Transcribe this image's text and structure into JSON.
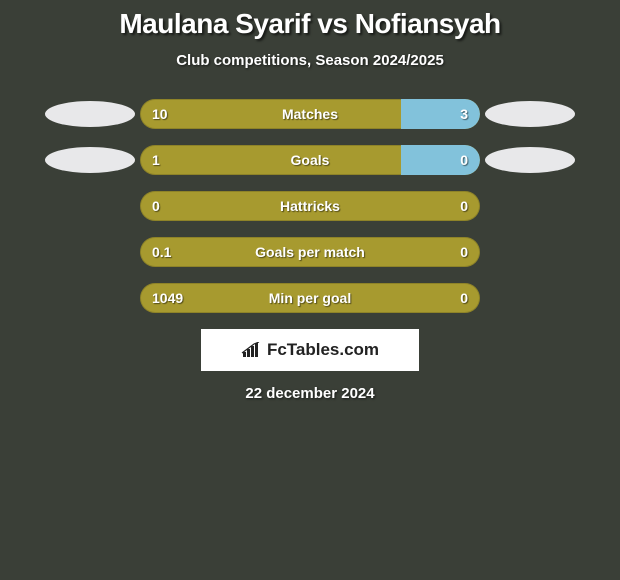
{
  "title": "Maulana Syarif vs Nofiansyah",
  "subtitle": "Club competitions, Season 2024/2025",
  "date": "22 december 2024",
  "logo_text": "FcTables.com",
  "colors": {
    "background": "#3a3f37",
    "bar_left": "#a79a2f",
    "bar_right": "#82c2db",
    "ellipse": "#e8e8ea",
    "text": "#ffffff"
  },
  "rows": [
    {
      "label": "Matches",
      "left_val": "10",
      "right_val": "3",
      "left_pct": 76.9,
      "right_pct": 23.1,
      "show_icons": true
    },
    {
      "label": "Goals",
      "left_val": "1",
      "right_val": "0",
      "left_pct": 76.9,
      "right_pct": 23.1,
      "show_icons": true
    },
    {
      "label": "Hattricks",
      "left_val": "0",
      "right_val": "0",
      "left_pct": 100,
      "right_pct": 0,
      "show_icons": false
    },
    {
      "label": "Goals per match",
      "left_val": "0.1",
      "right_val": "0",
      "left_pct": 100,
      "right_pct": 0,
      "show_icons": false
    },
    {
      "label": "Min per goal",
      "left_val": "1049",
      "right_val": "0",
      "left_pct": 100,
      "right_pct": 0,
      "show_icons": false
    }
  ]
}
